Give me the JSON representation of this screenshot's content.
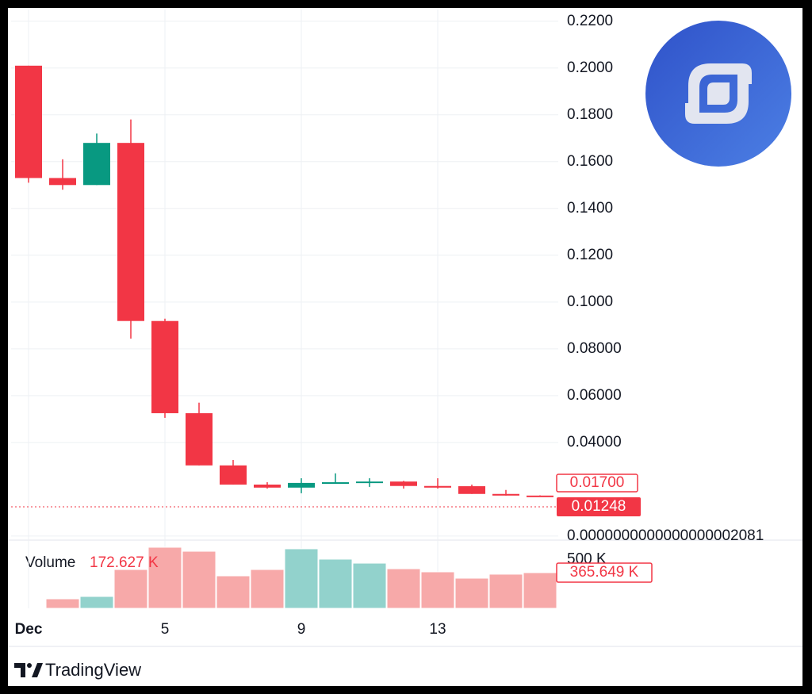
{
  "chart_data": {
    "type": "candlestick",
    "categories": [
      "Dec",
      null,
      null,
      null,
      "5",
      null,
      null,
      null,
      "9",
      null,
      null,
      null,
      "13",
      null,
      null,
      null
    ],
    "open": [
      0.201,
      0.153,
      0.15,
      0.168,
      0.0919,
      0.0525,
      0.0302,
      0.022,
      0.0207,
      0.0227,
      0.023,
      0.0233,
      0.0214,
      0.0213,
      0.018,
      0.0173
    ],
    "high": [
      0.201,
      0.161,
      0.172,
      0.178,
      0.0929,
      0.057,
      0.0325,
      0.023,
      0.0247,
      0.0268,
      0.0247,
      0.0236,
      0.0247,
      0.022,
      0.0197,
      0.0174
    ],
    "low": [
      0.151,
      0.148,
      0.15,
      0.0844,
      0.0505,
      0.0302,
      0.022,
      0.0203,
      0.0183,
      0.0227,
      0.021,
      0.0203,
      0.0203,
      0.018,
      0.0173,
      0.0168
    ],
    "close": [
      0.153,
      0.15,
      0.168,
      0.0919,
      0.0525,
      0.0302,
      0.022,
      0.0207,
      0.0227,
      0.023,
      0.0233,
      0.0214,
      0.0207,
      0.018,
      0.0173,
      0.017
    ],
    "volume": [
      null,
      97600,
      122000,
      398000,
      626000,
      585000,
      333000,
      398000,
      610000,
      504000,
      463000,
      406000,
      374000,
      309000,
      350000,
      365649
    ],
    "up_color": "#089981",
    "down_color": "#f23645",
    "up_volume_color": "#92d2cc",
    "down_volume_color": "#f7a9a9",
    "ylim": [
      -0.0014,
      0.225
    ],
    "yticks": [
      {
        "value": 0.22,
        "label": "0.2200"
      },
      {
        "value": 0.2,
        "label": "0.2000"
      },
      {
        "value": 0.18,
        "label": "0.1800"
      },
      {
        "value": 0.16,
        "label": "0.1600"
      },
      {
        "value": 0.14,
        "label": "0.1400"
      },
      {
        "value": 0.12,
        "label": "0.1200"
      },
      {
        "value": 0.1,
        "label": "0.1000"
      },
      {
        "value": 0.08,
        "label": "0.08000"
      },
      {
        "value": 0.06,
        "label": "0.06000"
      },
      {
        "value": 0.04,
        "label": "0.04000"
      },
      {
        "value": 2.081e-19,
        "label": "0.0000000000000000002081"
      }
    ],
    "volume_ylim": [
      0,
      642000
    ],
    "volume_yticks": [
      {
        "value": 500000,
        "label": "500 K"
      }
    ],
    "grid": true,
    "close_label": {
      "value": 0.017,
      "label": "0.01700"
    },
    "last_price": {
      "value": 0.01248,
      "label": "0.01248"
    },
    "volume_title": "Volume",
    "volume_legend": {
      "value": 172627,
      "label": "172.627 K"
    },
    "volume_last_label": {
      "value": 365649,
      "label": "365.649 K"
    },
    "brand": "TradingView"
  }
}
